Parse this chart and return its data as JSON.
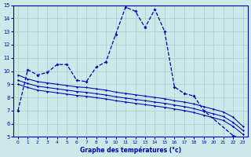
{
  "bg_color": "#cce8e8",
  "line_color": "#0000bb",
  "grid_color": "#aacccc",
  "xlabel": "Graphe des températures (°c)",
  "ylim": [
    5,
    15
  ],
  "xlim": [
    -0.5,
    23.5
  ],
  "yticks": [
    5,
    6,
    7,
    8,
    9,
    10,
    11,
    12,
    13,
    14,
    15
  ],
  "xticks": [
    0,
    1,
    2,
    3,
    4,
    5,
    6,
    7,
    8,
    9,
    10,
    11,
    12,
    13,
    14,
    15,
    16,
    17,
    18,
    19,
    20,
    21,
    22,
    23
  ],
  "curve1_x": [
    0,
    1,
    2,
    3,
    4,
    5,
    6,
    7,
    8,
    9,
    10,
    11,
    12,
    13,
    14,
    15,
    16,
    17,
    18,
    19,
    22,
    23
  ],
  "curve1_y": [
    7.0,
    10.1,
    9.7,
    9.9,
    10.5,
    10.5,
    9.3,
    9.2,
    10.3,
    10.7,
    12.8,
    14.85,
    14.55,
    13.3,
    14.7,
    13.0,
    8.8,
    8.3,
    8.1,
    7.0,
    5.1,
    4.8
  ],
  "line2_x": [
    0,
    1,
    2,
    3,
    4,
    5,
    6,
    7,
    8,
    9,
    10,
    11,
    12,
    13,
    14,
    15,
    16,
    17,
    18,
    19,
    20,
    21,
    22,
    23
  ],
  "line2_y": [
    9.7,
    9.4,
    9.2,
    9.1,
    9.0,
    8.9,
    8.8,
    8.75,
    8.65,
    8.55,
    8.4,
    8.3,
    8.2,
    8.1,
    8.0,
    7.9,
    7.75,
    7.65,
    7.5,
    7.3,
    7.1,
    6.9,
    6.5,
    5.8
  ],
  "line3_x": [
    0,
    1,
    2,
    3,
    4,
    5,
    6,
    7,
    8,
    9,
    10,
    11,
    12,
    13,
    14,
    15,
    16,
    17,
    18,
    19,
    20,
    21,
    22,
    23
  ],
  "line3_y": [
    9.3,
    9.05,
    8.85,
    8.75,
    8.65,
    8.55,
    8.45,
    8.38,
    8.28,
    8.18,
    8.05,
    7.95,
    7.85,
    7.75,
    7.65,
    7.55,
    7.42,
    7.3,
    7.15,
    6.95,
    6.75,
    6.55,
    6.1,
    5.5
  ],
  "line4_x": [
    0,
    1,
    2,
    3,
    4,
    5,
    6,
    7,
    8,
    9,
    10,
    11,
    12,
    13,
    14,
    15,
    16,
    17,
    18,
    19,
    20,
    21,
    22,
    23
  ],
  "line4_y": [
    9.0,
    8.75,
    8.55,
    8.45,
    8.35,
    8.25,
    8.15,
    8.08,
    7.98,
    7.88,
    7.75,
    7.65,
    7.55,
    7.45,
    7.35,
    7.25,
    7.12,
    7.0,
    6.85,
    6.65,
    6.45,
    6.25,
    5.8,
    5.2
  ]
}
